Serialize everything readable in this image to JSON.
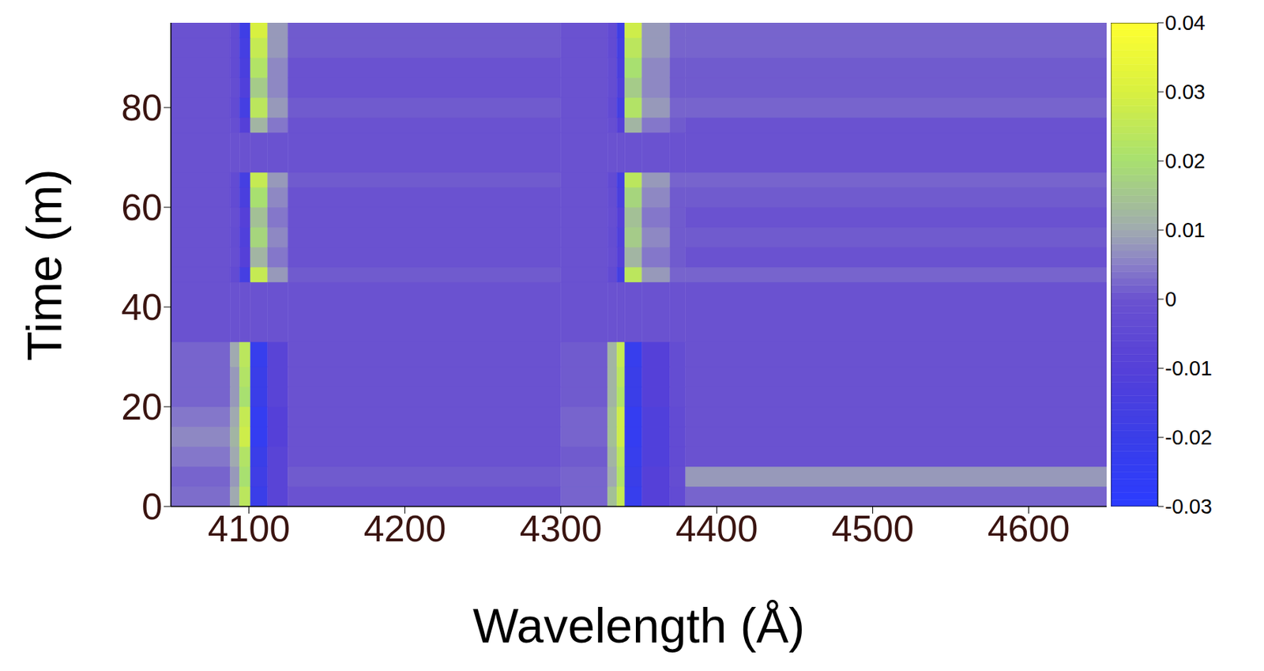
{
  "chart_data": {
    "type": "heatmap",
    "xlabel": "Wavelength (Å)",
    "ylabel": "Time (m)",
    "xlim": [
      4050,
      4650
    ],
    "xticks": [
      4100,
      4200,
      4300,
      4400,
      4500,
      4600
    ],
    "ylim": [
      0,
      97
    ],
    "yticks": [
      0,
      20,
      40,
      60,
      80
    ],
    "x_edges": [
      4050,
      4088,
      4094,
      4101,
      4112,
      4125,
      4300,
      4330,
      4336,
      4341,
      4352,
      4370,
      4380,
      4650
    ],
    "y_edges": [
      0,
      4,
      8,
      12,
      16,
      20,
      24,
      28,
      33,
      45,
      48,
      52,
      56,
      60,
      64,
      67,
      75,
      78,
      82,
      86,
      90,
      94,
      97
    ],
    "cells": [
      [
        0.003,
        0.01,
        0.024,
        -0.02,
        -0.008,
        0,
        0.002,
        0.014,
        0.026,
        -0.022,
        -0.01,
        -0.004,
        0.002
      ],
      [
        0.002,
        0.008,
        0.02,
        -0.018,
        -0.008,
        0.001,
        0.002,
        0.01,
        0.022,
        -0.02,
        -0.01,
        -0.003,
        0.008
      ],
      [
        0.004,
        0.01,
        0.022,
        -0.02,
        -0.008,
        0,
        0.001,
        0.012,
        0.024,
        -0.022,
        -0.012,
        -0.004,
        0
      ],
      [
        0.006,
        0.012,
        0.028,
        -0.024,
        -0.01,
        0,
        0.002,
        0.014,
        0.028,
        -0.024,
        -0.012,
        -0.004,
        0
      ],
      [
        0.004,
        0.01,
        0.026,
        -0.024,
        -0.01,
        0,
        0.002,
        0.014,
        0.028,
        -0.024,
        -0.012,
        -0.004,
        0
      ],
      [
        0.002,
        0.008,
        0.02,
        -0.02,
        -0.008,
        0,
        0.001,
        0.012,
        0.022,
        -0.02,
        -0.01,
        -0.003,
        0
      ],
      [
        0.002,
        0.008,
        0.022,
        -0.02,
        -0.008,
        0,
        0.001,
        0.012,
        0.024,
        -0.02,
        -0.01,
        -0.003,
        0
      ],
      [
        0.002,
        0.01,
        0.024,
        -0.022,
        -0.008,
        0,
        0.001,
        0.012,
        0.026,
        -0.022,
        -0.01,
        -0.003,
        0
      ],
      [
        0,
        0,
        0,
        0,
        0,
        0,
        0,
        0,
        0,
        0,
        0,
        0,
        0
      ],
      [
        0,
        -0.004,
        -0.016,
        0.026,
        0.008,
        0.001,
        0,
        -0.004,
        -0.016,
        0.024,
        0.008,
        0.002,
        0.002
      ],
      [
        0,
        -0.002,
        -0.01,
        0.012,
        0.004,
        0,
        0,
        -0.002,
        -0.01,
        0.012,
        0.004,
        0.001,
        0
      ],
      [
        0,
        -0.003,
        -0.012,
        0.018,
        0.006,
        0,
        0,
        -0.003,
        -0.012,
        0.016,
        0.006,
        0.001,
        0.001
      ],
      [
        0,
        -0.002,
        -0.01,
        0.014,
        0.004,
        0,
        0,
        -0.002,
        -0.01,
        0.014,
        0.004,
        0.001,
        0
      ],
      [
        0,
        -0.004,
        -0.014,
        0.02,
        0.006,
        0,
        0,
        -0.003,
        -0.014,
        0.018,
        0.006,
        0.001,
        0.001
      ],
      [
        0,
        -0.004,
        -0.016,
        0.026,
        0.008,
        0.001,
        0,
        -0.004,
        -0.016,
        0.024,
        0.008,
        0.002,
        0.002
      ],
      [
        0,
        0,
        0,
        0,
        0,
        0,
        0,
        0,
        0,
        0,
        0,
        0,
        0
      ],
      [
        0,
        -0.002,
        -0.01,
        0.012,
        0.004,
        0,
        0,
        -0.002,
        -0.01,
        0.012,
        0.004,
        0.001,
        0
      ],
      [
        0,
        -0.004,
        -0.016,
        0.024,
        0.008,
        0.001,
        0,
        -0.004,
        -0.016,
        0.022,
        0.008,
        0.002,
        0.002
      ],
      [
        0,
        -0.003,
        -0.012,
        0.016,
        0.006,
        0,
        0,
        -0.003,
        -0.012,
        0.016,
        0.006,
        0.001,
        0.001
      ],
      [
        0,
        -0.004,
        -0.014,
        0.022,
        0.006,
        0,
        0,
        -0.003,
        -0.014,
        0.02,
        0.006,
        0.001,
        0.001
      ],
      [
        0,
        -0.004,
        -0.016,
        0.026,
        0.008,
        0.001,
        0,
        -0.004,
        -0.016,
        0.024,
        0.008,
        0.002,
        0.002
      ],
      [
        0,
        -0.004,
        -0.018,
        0.03,
        0.008,
        0.001,
        0,
        -0.004,
        -0.018,
        0.028,
        0.008,
        0.002,
        0.002
      ]
    ],
    "colorbar": {
      "range": [
        -0.03,
        0.04
      ],
      "ticks": [
        -0.03,
        -0.02,
        -0.01,
        0,
        0.01,
        0.02,
        0.03,
        0.04
      ]
    }
  }
}
